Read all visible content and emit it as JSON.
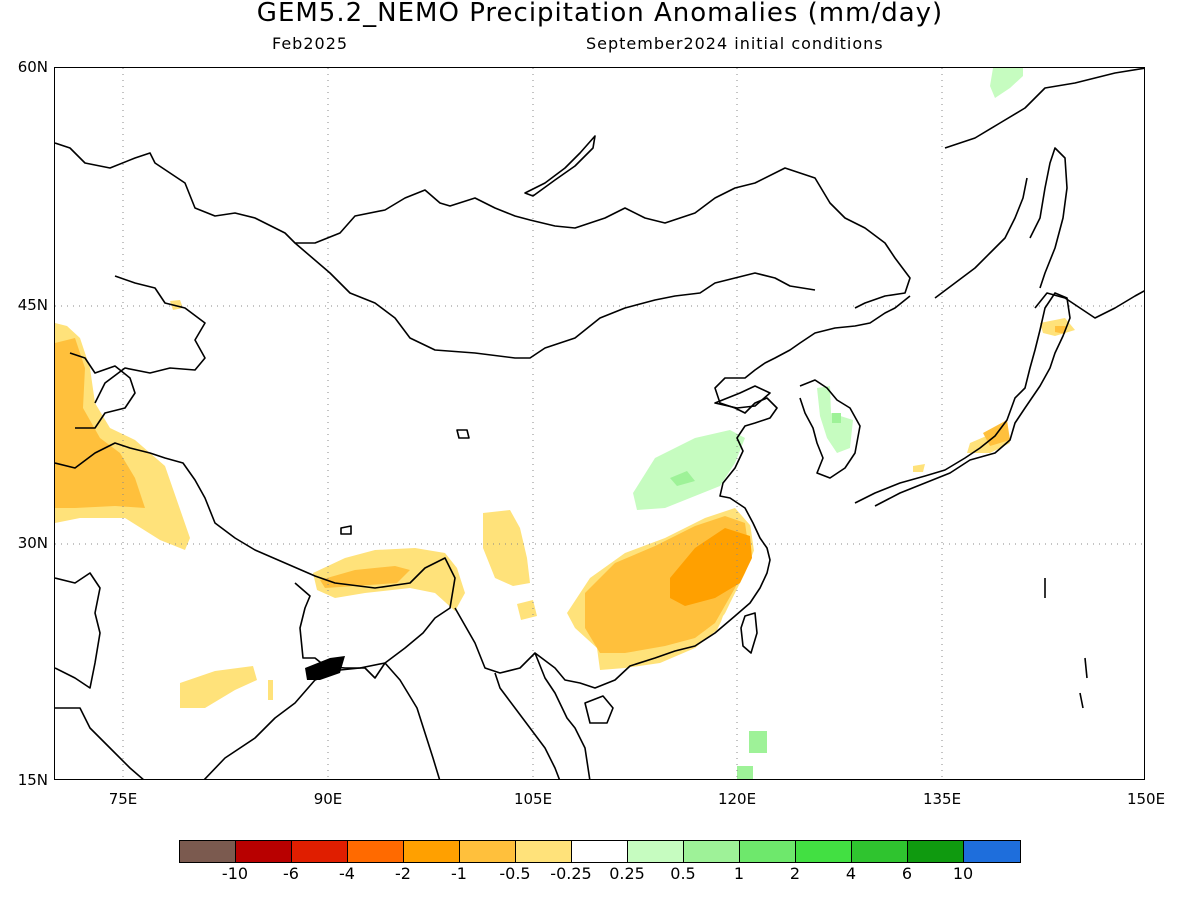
{
  "title": "GEM5.2_NEMO Precipitation Anomalies (mm/day)",
  "subtitle_left": "Feb2025",
  "subtitle_right": "September2024 initial conditions",
  "map": {
    "lon_range": [
      70,
      150
    ],
    "lat_range": [
      15,
      60
    ],
    "lat_labels": [
      "60N",
      "45N",
      "30N",
      "15N"
    ],
    "lon_labels": [
      "75E",
      "90E",
      "105E",
      "120E",
      "135E",
      "150E"
    ],
    "gridlines": "dotted"
  },
  "legend": {
    "colors": [
      "#7b5a4f",
      "#b80000",
      "#e01e00",
      "#ff6a00",
      "#ffa000",
      "#ffc03c",
      "#ffe27a",
      "#ffffff",
      "#c6fcc0",
      "#9ef298",
      "#6ee86c",
      "#42e042",
      "#2fc42f",
      "#0f9a0f",
      "#1e6edc"
    ],
    "labels": [
      "-10",
      "-6",
      "-4",
      "-2",
      "-1",
      "-0.5",
      "-0.25",
      "0.25",
      "0.5",
      "1",
      "2",
      "4",
      "6",
      "10"
    ]
  }
}
